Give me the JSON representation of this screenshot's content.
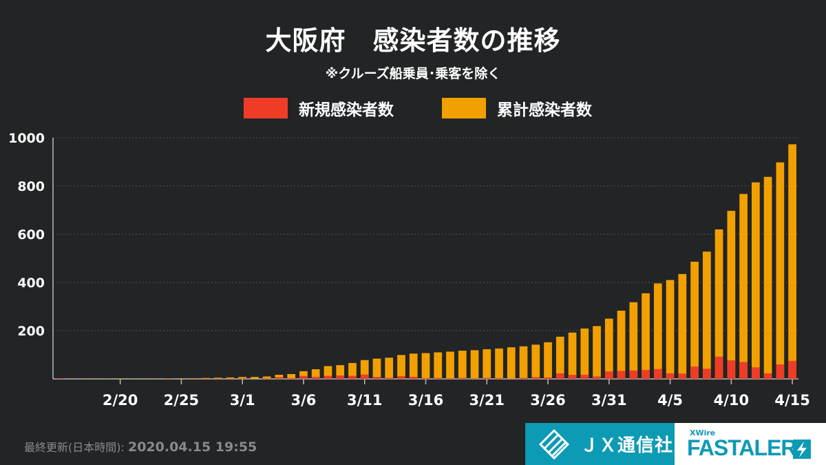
{
  "header": {
    "title": "大阪府　感染者数の推移",
    "subtitle": "※クルーズ船乗員･乗客を除く"
  },
  "legend": [
    {
      "label": "新規感染者数",
      "color": "#ee3c27"
    },
    {
      "label": "累計感染者数",
      "color": "#f2a000"
    }
  ],
  "footer": {
    "updated_label": "最終更新(日本時間):",
    "updated_value": "2020.04.15 19:55"
  },
  "branding": {
    "jx_name": "ＪＸ通信社",
    "fastalert_top": "XWire",
    "fastalert_name": "FASTALERT"
  },
  "chart_data": {
    "type": "bar",
    "stacked_overlay": true,
    "categories": [
      "2/15",
      "2/16",
      "2/17",
      "2/18",
      "2/19",
      "2/20",
      "2/21",
      "2/22",
      "2/23",
      "2/24",
      "2/25",
      "2/26",
      "2/27",
      "2/28",
      "2/29",
      "3/1",
      "3/2",
      "3/3",
      "3/4",
      "3/5",
      "3/6",
      "3/7",
      "3/8",
      "3/9",
      "3/10",
      "3/11",
      "3/12",
      "3/13",
      "3/14",
      "3/15",
      "3/16",
      "3/17",
      "3/18",
      "3/19",
      "3/20",
      "3/21",
      "3/22",
      "3/23",
      "3/24",
      "3/25",
      "3/26",
      "3/27",
      "3/28",
      "3/29",
      "3/30",
      "3/31",
      "4/1",
      "4/2",
      "4/3",
      "4/4",
      "4/5",
      "4/6",
      "4/7",
      "4/8",
      "4/9",
      "4/10",
      "4/11",
      "4/12",
      "4/13",
      "4/14",
      "4/15"
    ],
    "tick_labels": [
      "2/20",
      "2/25",
      "3/1",
      "3/6",
      "3/11",
      "3/16",
      "3/21",
      "3/26",
      "3/31",
      "4/5",
      "4/10",
      "4/15"
    ],
    "series": [
      {
        "name": "新規感染者数",
        "color": "#ee3c27",
        "values": [
          1,
          0,
          0,
          0,
          0,
          0,
          0,
          0,
          0,
          1,
          0,
          1,
          1,
          1,
          1,
          2,
          0,
          2,
          7,
          3,
          12,
          8,
          13,
          14,
          13,
          18,
          8,
          4,
          12,
          8,
          3,
          4,
          2,
          4,
          2,
          4,
          3,
          1,
          4,
          7,
          6,
          23,
          17,
          17,
          10,
          31,
          33,
          35,
          37,
          41,
          23,
          22,
          51,
          42,
          92,
          77,
          70,
          48,
          23,
          60,
          75
        ]
      },
      {
        "name": "累計感染者数",
        "color": "#f2a000",
        "values": [
          1,
          1,
          1,
          1,
          1,
          1,
          1,
          1,
          1,
          2,
          2,
          3,
          4,
          5,
          6,
          8,
          8,
          10,
          17,
          20,
          32,
          40,
          53,
          57,
          66,
          78,
          84,
          88,
          99,
          105,
          107,
          110,
          113,
          117,
          119,
          123,
          126,
          131,
          135,
          142,
          152,
          175,
          192,
          209,
          219,
          250,
          283,
          318,
          355,
          396,
          410,
          435,
          486,
          528,
          620,
          697,
          767,
          815,
          838,
          898,
          973
        ]
      }
    ],
    "ylim": [
      0,
      1000
    ],
    "yticks": [
      200,
      400,
      600,
      800,
      1000
    ],
    "grid": true
  }
}
